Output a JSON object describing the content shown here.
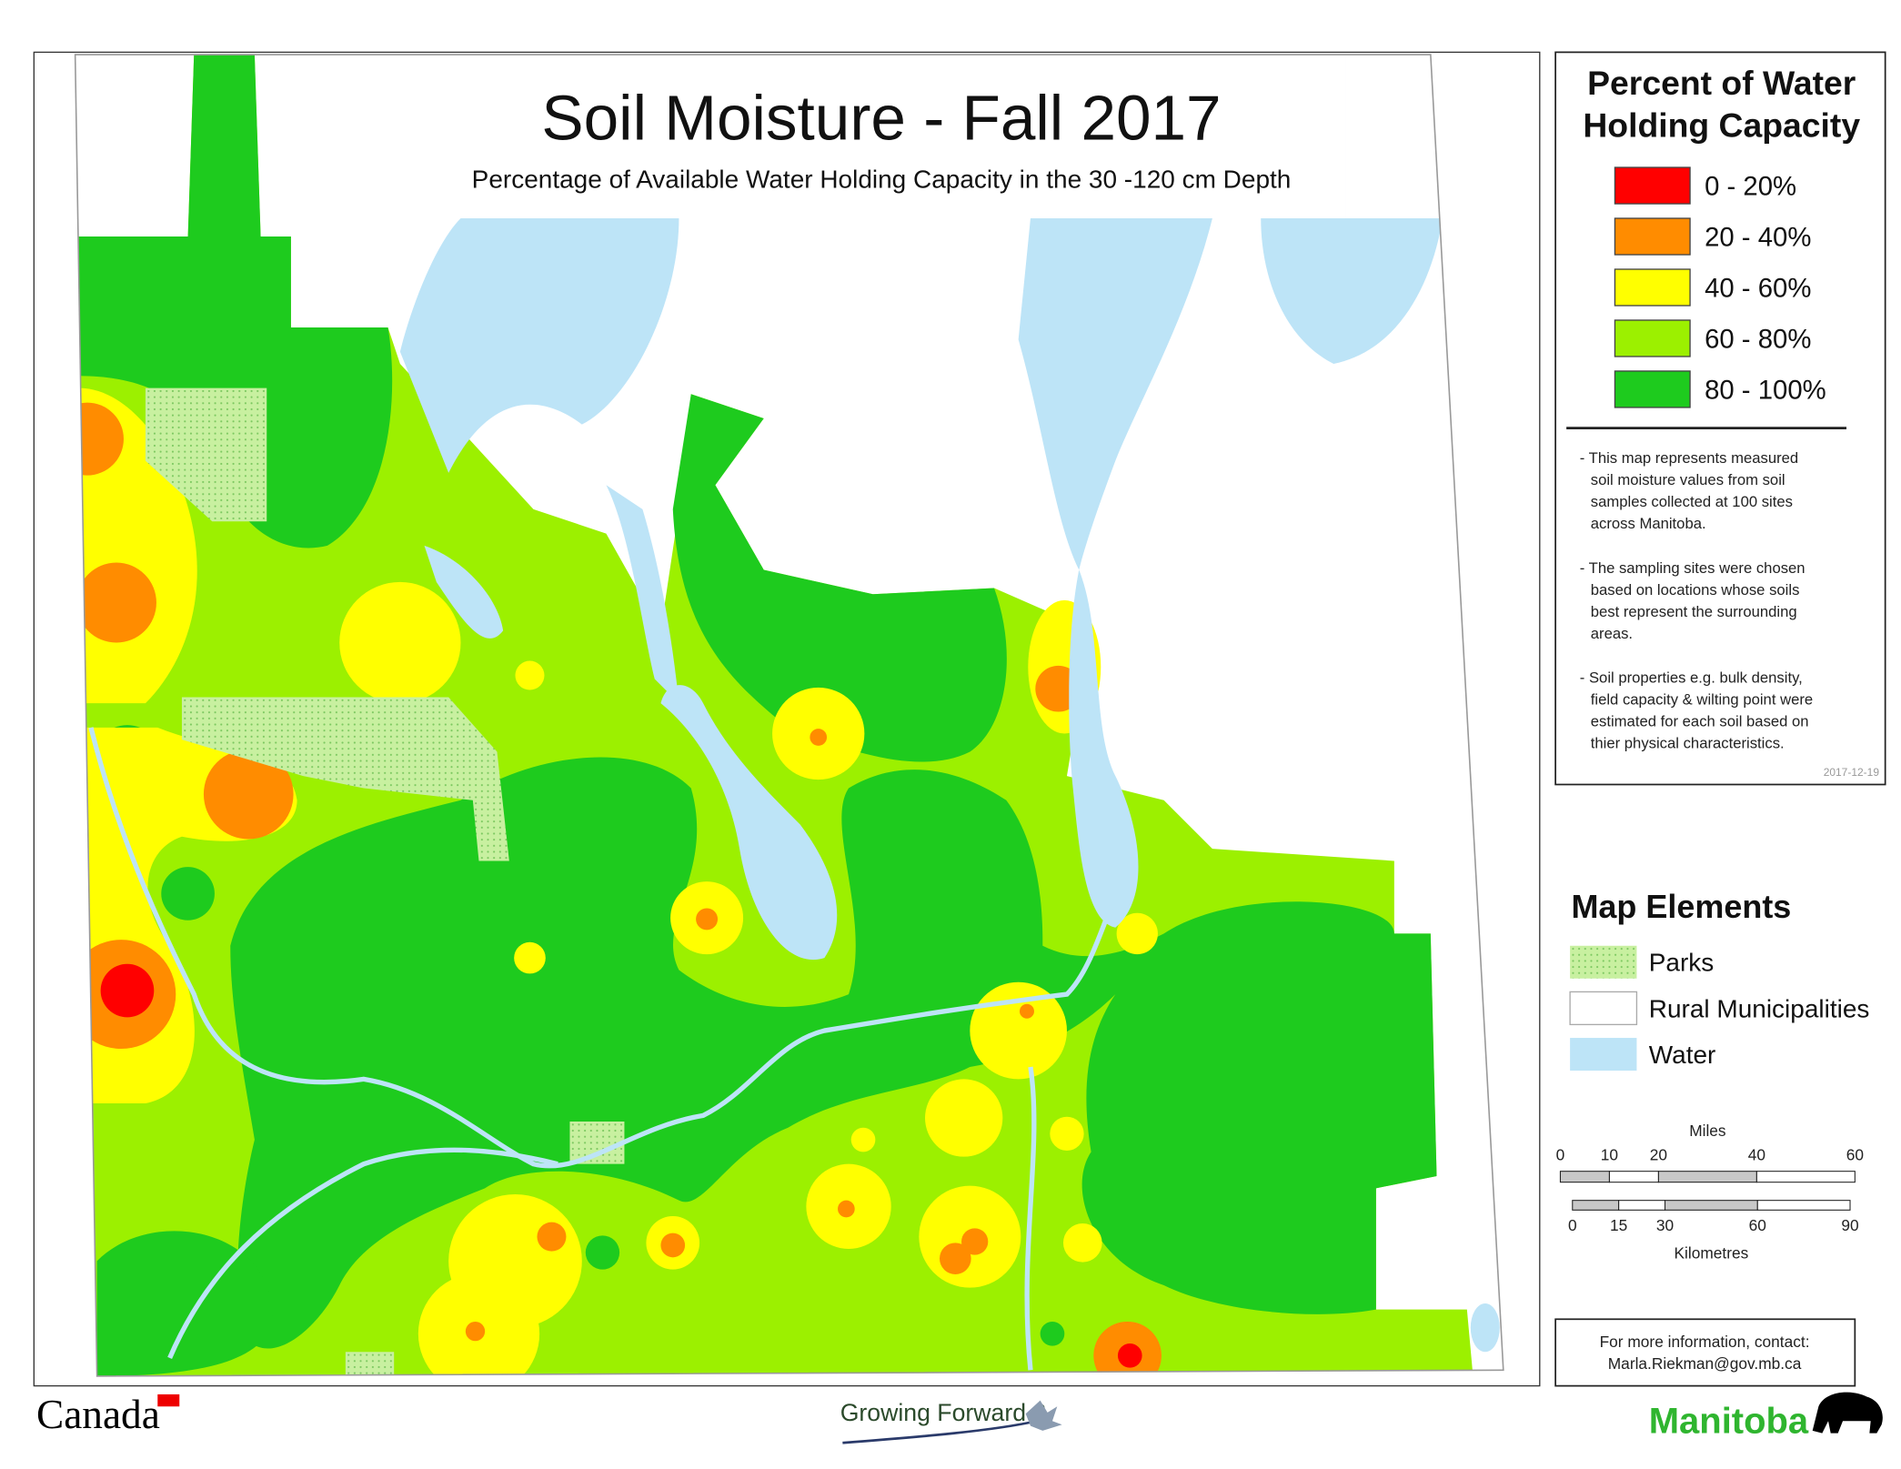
{
  "title": "Soil Moisture - Fall 2017",
  "subtitle": "Percentage of Available Water Holding Capacity in the 30 -120 cm Depth",
  "legend": {
    "title": [
      "Percent of Water",
      "Holding Capacity"
    ],
    "items": [
      {
        "label": "0 - 20%",
        "color": "#ff0000"
      },
      {
        "label": "20 - 40%",
        "color": "#ff8c00"
      },
      {
        "label": "40 - 60%",
        "color": "#ffff00"
      },
      {
        "label": "60 - 80%",
        "color": "#9cf000"
      },
      {
        "label": "80 - 100%",
        "color": "#1ecb1e"
      }
    ],
    "notes": [
      [
        "- This map represents measured",
        "soil moisture values from soil",
        "samples collected at 100 sites",
        "across Manitoba."
      ],
      [
        "- The sampling sites were chosen",
        "based on locations whose soils",
        "best represent the surrounding",
        "areas."
      ],
      [
        "- Soil properties e.g. bulk density,",
        "field capacity & wilting point were",
        "estimated for each soil based on",
        "thier physical characteristics."
      ]
    ],
    "date": "2017-12-19"
  },
  "map_elements": {
    "title": "Map Elements",
    "items": [
      "Parks",
      "Rural Municipalities",
      "Water"
    ]
  },
  "scale_bar": {
    "miles": {
      "label": "Miles",
      "ticks": [
        0,
        10,
        20,
        40,
        60
      ]
    },
    "kilometres": {
      "label": "Kilometres",
      "ticks": [
        0,
        15,
        30,
        60,
        90
      ]
    }
  },
  "contact": [
    "For more information, contact:",
    "Marla.Riekman@gov.mb.ca"
  ],
  "logos": {
    "canada": "Canada",
    "growing_forward": "Growing Forward 2",
    "manitoba": "Manitoba"
  }
}
